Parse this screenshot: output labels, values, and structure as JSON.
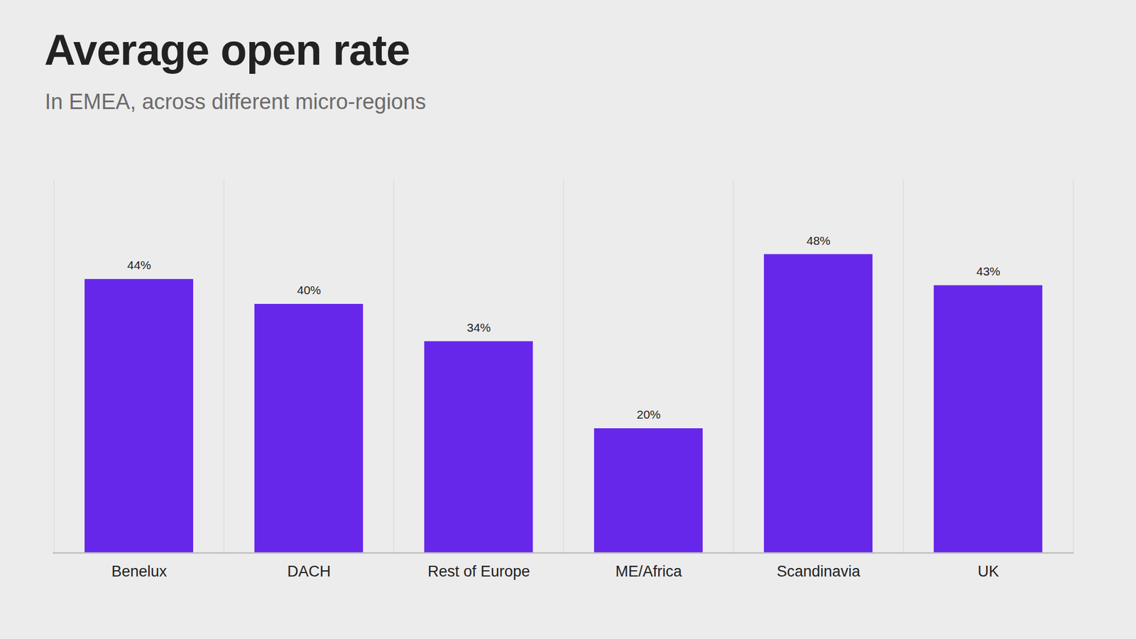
{
  "chart_data": {
    "type": "bar",
    "title": "Average open rate",
    "subtitle": "In EMEA, across different micro-regions",
    "categories": [
      "Benelux",
      "DACH",
      "Rest of Europe",
      "ME/Africa",
      "Scandinavia",
      "UK"
    ],
    "values": [
      44,
      40,
      34,
      20,
      48,
      43
    ],
    "value_labels": [
      "44%",
      "40%",
      "34%",
      "20%",
      "48%",
      "43%"
    ],
    "color": "#6727eb",
    "ylim": [
      0,
      60
    ],
    "grid": true,
    "data_labels": true,
    "tick_labels": "x"
  }
}
